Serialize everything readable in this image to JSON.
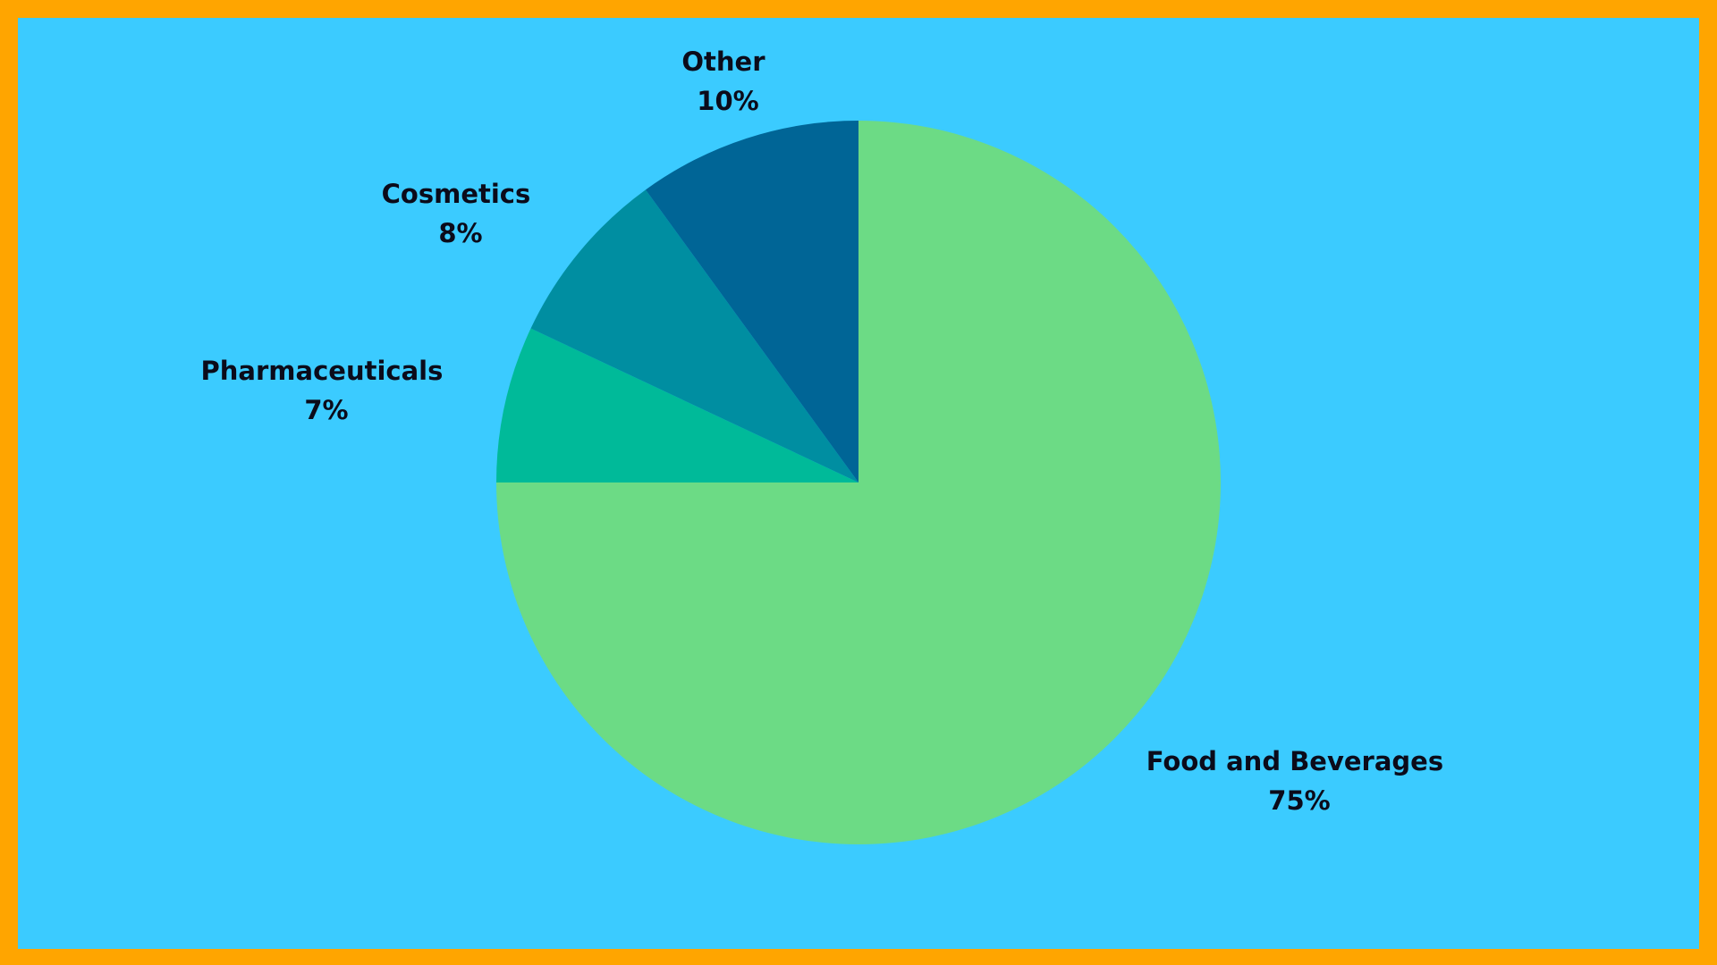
{
  "colors": {
    "border": "#FFA500",
    "background": "#3BCBFF"
  },
  "chart_data": {
    "type": "pie",
    "title": "",
    "start": "12 o'clock",
    "direction": "clockwise",
    "legend": "none",
    "slices": [
      {
        "label": "Food and Beverages",
        "value": 75,
        "value_label": "75%",
        "color": "#6CDB85"
      },
      {
        "label": "Pharmaceuticals",
        "value": 7,
        "value_label": "7%",
        "color": "#00BA99"
      },
      {
        "label": "Cosmetics",
        "value": 8,
        "value_label": "8%",
        "color": "#008EA1"
      },
      {
        "label": "Other",
        "value": 10,
        "value_label": "10%",
        "color": "#006596"
      }
    ]
  }
}
